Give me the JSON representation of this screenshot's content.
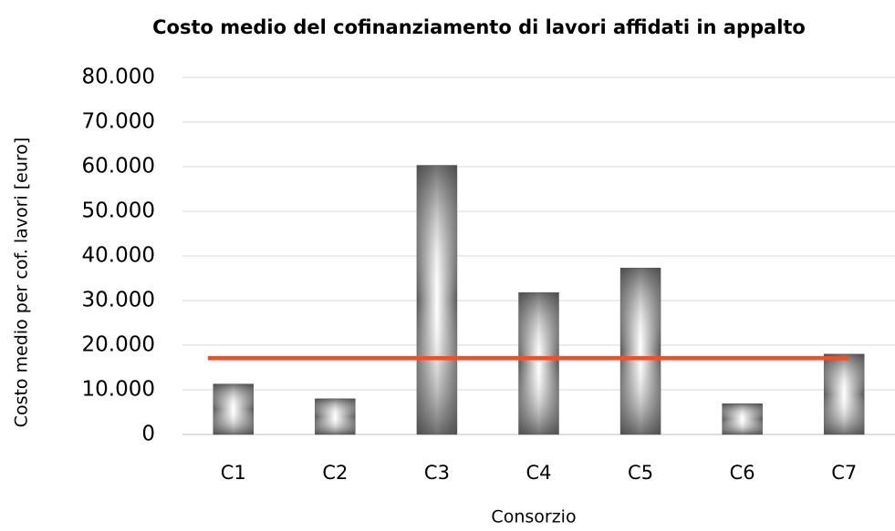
{
  "chart_data": {
    "type": "bar",
    "title": "Costo medio del cofinanziamento di lavori affidati in appalto",
    "x_label": "Consorzio",
    "y_label": "Costo medio per cof. lavori [euro]",
    "categories": [
      "C1",
      "C2",
      "C3",
      "C4",
      "C5",
      "C6",
      "C7"
    ],
    "values": [
      11300,
      8000,
      60300,
      31800,
      37300,
      6900,
      18000
    ],
    "color": "#5a5a5a",
    "reference_line": {
      "value": 17100,
      "color": "#ff4a1c"
    },
    "ylim": [
      0,
      80000
    ],
    "yticks": [
      0,
      {
        "value": 10000,
        "label": "10.000"
      },
      {
        "value": 20000,
        "label": "20.000"
      },
      {
        "value": 30000,
        "label": "30.000"
      },
      {
        "value": 40000,
        "label": "40.000"
      },
      {
        "value": 50000,
        "label": "50.000"
      },
      {
        "value": 60000,
        "label": "60.000"
      },
      {
        "value": 70000,
        "label": "70.000"
      },
      {
        "value": 80000,
        "label": "80.000"
      }
    ],
    "grid": true
  }
}
